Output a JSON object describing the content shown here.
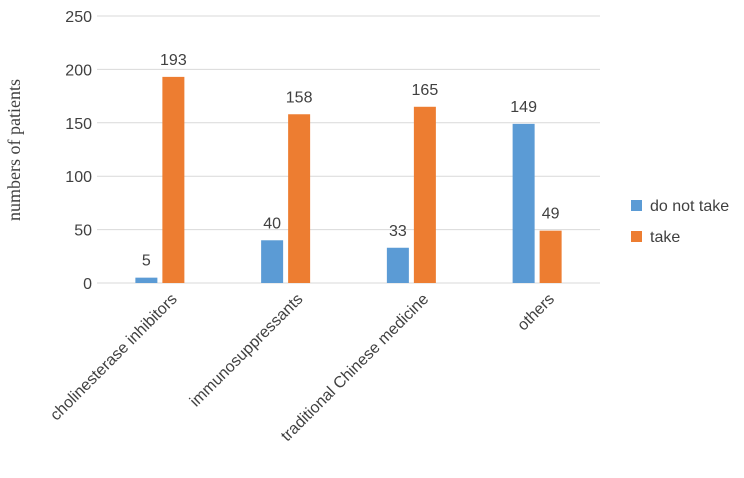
{
  "chart_data": {
    "type": "bar",
    "ylabel": "numbers of patients",
    "ylim": [
      0,
      250
    ],
    "yticks": [
      0,
      50,
      100,
      150,
      200,
      250
    ],
    "grid": true,
    "legend_position": "right",
    "categories": [
      "cholinesterase inhibitors",
      "immunosuppressants",
      "traditional Chinese medicine",
      "others"
    ],
    "series": [
      {
        "name": "do not take",
        "color": "#5b9bd5",
        "values": [
          5,
          40,
          33,
          149
        ]
      },
      {
        "name": "take",
        "color": "#ed7d31",
        "values": [
          193,
          158,
          165,
          49
        ]
      }
    ]
  }
}
